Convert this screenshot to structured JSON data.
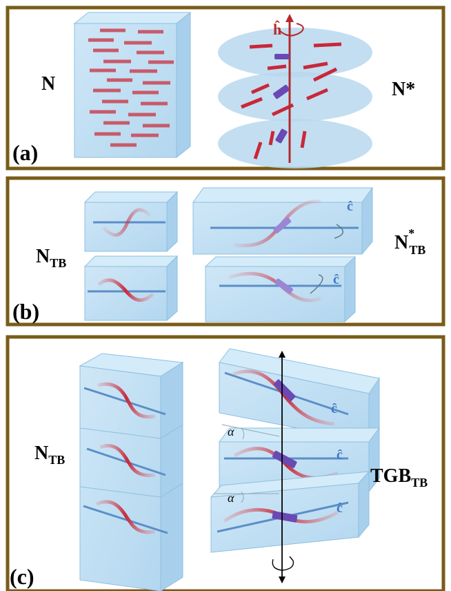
{
  "colors": {
    "frame": "#7a5c19",
    "box_fill": "#bfe0f5",
    "box_stroke": "#7db3d6",
    "rod": "#c03a4a",
    "helix": "#6a49b4",
    "director": "#5b8ec7",
    "axis": "#b52a2a",
    "disc": "#aacde8"
  },
  "panels": {
    "a": {
      "tag": "(a)",
      "left_label": "N",
      "right_label": "N*",
      "axis_label": "ĥ"
    },
    "b": {
      "tag": "(b)",
      "left_label_main": "N",
      "left_label_sub": "TB",
      "right_label_main": "N",
      "right_label_sub": "TB",
      "right_label_sup": "*",
      "axis_label_1": "ĉ",
      "axis_label_2": "ĉ"
    },
    "c": {
      "tag": "(c)",
      "left_label_main": "N",
      "left_label_sub": "TB",
      "right_label_main": "TGB",
      "right_label_sub": "TB",
      "axis_label_1": "ĉ",
      "axis_label_2": "ĉ",
      "axis_label_3": "ĉ",
      "angle_label_1": "α",
      "angle_label_2": "α"
    }
  }
}
